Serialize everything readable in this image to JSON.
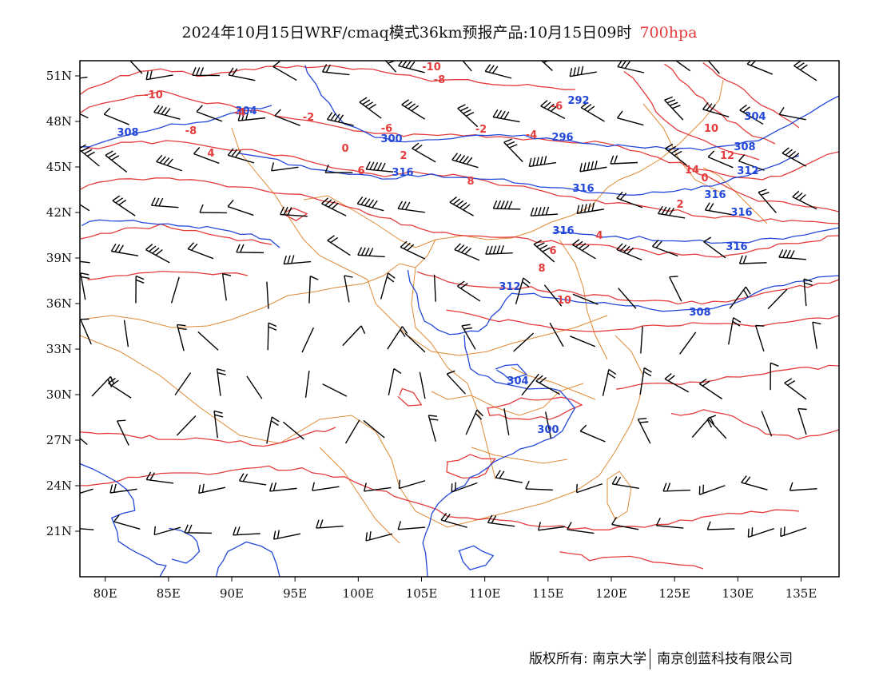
{
  "header": {
    "title": "2024年10月15日WRF/cmaq模式36km预报产品:10月15日09时",
    "level": "700hpa"
  },
  "map": {
    "lon_range": [
      78,
      138
    ],
    "lat_range": [
      18,
      52
    ],
    "lon_ticks": [
      "80E",
      "85E",
      "90E",
      "95E",
      "100E",
      "105E",
      "110E",
      "115E",
      "120E",
      "125E",
      "130E",
      "135E"
    ],
    "lat_ticks": [
      "21N",
      "24N",
      "27N",
      "30N",
      "33N",
      "36N",
      "39N",
      "42N",
      "45N",
      "48N",
      "51N"
    ],
    "colors": {
      "temperature": "#e43b3b",
      "height": "#2348d8",
      "boundary": "#e08a36",
      "wind": "#000000"
    },
    "height_labels": [
      "308",
      "304",
      "300",
      "292",
      "296",
      "304",
      "308",
      "312",
      "316",
      "316",
      "316",
      "316",
      "316",
      "316",
      "312",
      "308",
      "304",
      "300"
    ],
    "temp_labels": [
      "-10",
      "-8",
      "-6",
      "-4",
      "-2",
      "0",
      "2",
      "4",
      "6",
      "8",
      "10",
      "12",
      "14",
      "-2",
      "-4",
      "-6",
      "-8",
      "-10",
      "0",
      "2",
      "4",
      "6",
      "8",
      "10"
    ]
  },
  "footer": {
    "copyright": "版权所有: 南京大学",
    "company": "南京创蓝科技有限公司"
  }
}
